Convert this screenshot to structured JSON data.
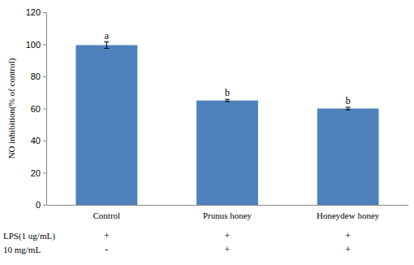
{
  "chart_data": {
    "type": "bar",
    "y_label": "NO inhibition(% of control)",
    "categories": [
      "Control",
      "Prunus honey",
      "Honeydew honey"
    ],
    "values": [
      99.5,
      65,
      60
    ],
    "errors": [
      2,
      0.7,
      0.8
    ],
    "significance": [
      "a",
      "b",
      "b"
    ],
    "color": "#4f81bd",
    "ylim": [
      0,
      120
    ],
    "yticks": [
      0,
      20,
      40,
      60,
      80,
      100,
      120
    ],
    "grid": false,
    "treatment_rows": [
      {
        "label": "LPS(1 ug/mL)",
        "marks": [
          "+",
          "+",
          "+"
        ]
      },
      {
        "label": "10 mg/mL",
        "marks": [
          "-",
          "+",
          "+"
        ]
      }
    ]
  }
}
